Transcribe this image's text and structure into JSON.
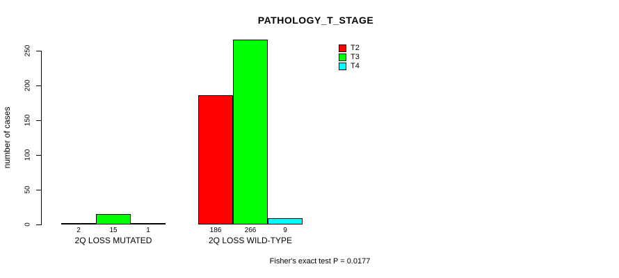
{
  "chart_data": {
    "type": "bar",
    "title": "PATHOLOGY_T_STAGE",
    "ylabel": "number of cases",
    "xlabel": "",
    "ylim": [
      0,
      250
    ],
    "yticks": [
      "0",
      "50",
      "100",
      "150",
      "200",
      "250"
    ],
    "categories": [
      "2Q LOSS MUTATED",
      "2Q LOSS WILD-TYPE"
    ],
    "series": [
      {
        "name": "T2",
        "color": "#ff0000",
        "values": [
          2,
          186
        ]
      },
      {
        "name": "T3",
        "color": "#00ff00",
        "values": [
          15,
          266
        ]
      },
      {
        "name": "T4",
        "color": "#00ffff",
        "values": [
          1,
          9
        ]
      }
    ],
    "bar_value_labels": [
      [
        "2",
        "15",
        "1"
      ],
      [
        "186",
        "266",
        "9"
      ]
    ],
    "legend_position": "top-right",
    "grid": false,
    "annotation": "Fisher's exact test P = 0.0177"
  },
  "colors": {
    "background": "#ffffff",
    "text": "#000000",
    "axis": "#000000",
    "bar_outline": "#000000"
  }
}
